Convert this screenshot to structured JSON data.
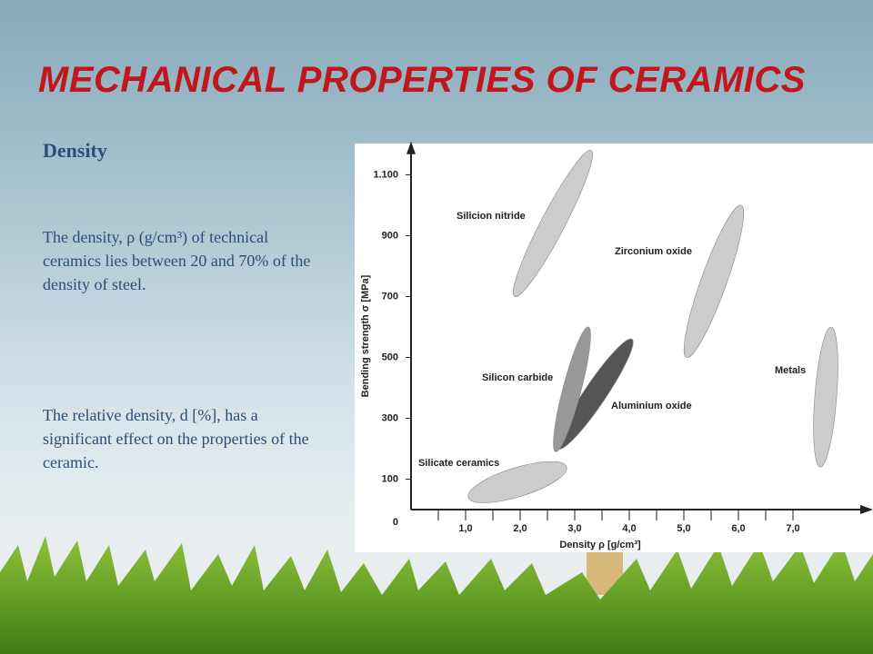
{
  "slide": {
    "title": "MECHANICAL PROPERTIES OF CERAMICS",
    "heading": "Density",
    "paragraphs": [
      "The density, ρ (g/cm³) of technical ceramics lies between 20 and 70% of the density of steel.",
      "The relative density, d [%], has a significant effect on the properties of the ceramic."
    ]
  },
  "chart_data": {
    "type": "region",
    "xlabel": "Density ρ [g/cm³]",
    "ylabel": "Bending strength σ [MPa]",
    "xlim": [
      0,
      8.3
    ],
    "ylim": [
      0,
      1180
    ],
    "xticks": [
      {
        "value": 1,
        "label": "1,0"
      },
      {
        "value": 2,
        "label": "2,0"
      },
      {
        "value": 3,
        "label": "3,0"
      },
      {
        "value": 4,
        "label": "4,0"
      },
      {
        "value": 5,
        "label": "5,0"
      },
      {
        "value": 6,
        "label": "6,0"
      },
      {
        "value": 7,
        "label": "7,0"
      }
    ],
    "yticks": [
      0,
      100,
      300,
      500,
      700,
      900,
      {
        "value": 1100,
        "label": "1.100"
      }
    ],
    "series": [
      {
        "name": "Silicion nitride",
        "color": "#cccccc",
        "x": [
          1.9,
          3.3
        ],
        "y": [
          700,
          1180
        ]
      },
      {
        "name": "Zirconium oxide",
        "color": "#cccccc",
        "x": [
          5.05,
          6.05
        ],
        "y": [
          500,
          1000
        ]
      },
      {
        "name": "Metals",
        "color": "#cccccc",
        "x": [
          7.5,
          7.7
        ],
        "y": [
          140,
          600
        ]
      },
      {
        "name": "Silicate ceramics",
        "color": "#cccccc",
        "x": [
          1.05,
          2.85
        ],
        "y": [
          40,
          140
        ]
      },
      {
        "name": "Aluminium oxide",
        "color": "#555555",
        "x": [
          2.7,
          4.05
        ],
        "y": [
          200,
          560
        ]
      },
      {
        "name": "Silicon carbide",
        "color": "#999999",
        "x": [
          2.65,
          3.25
        ],
        "y": [
          190,
          600
        ]
      }
    ]
  }
}
